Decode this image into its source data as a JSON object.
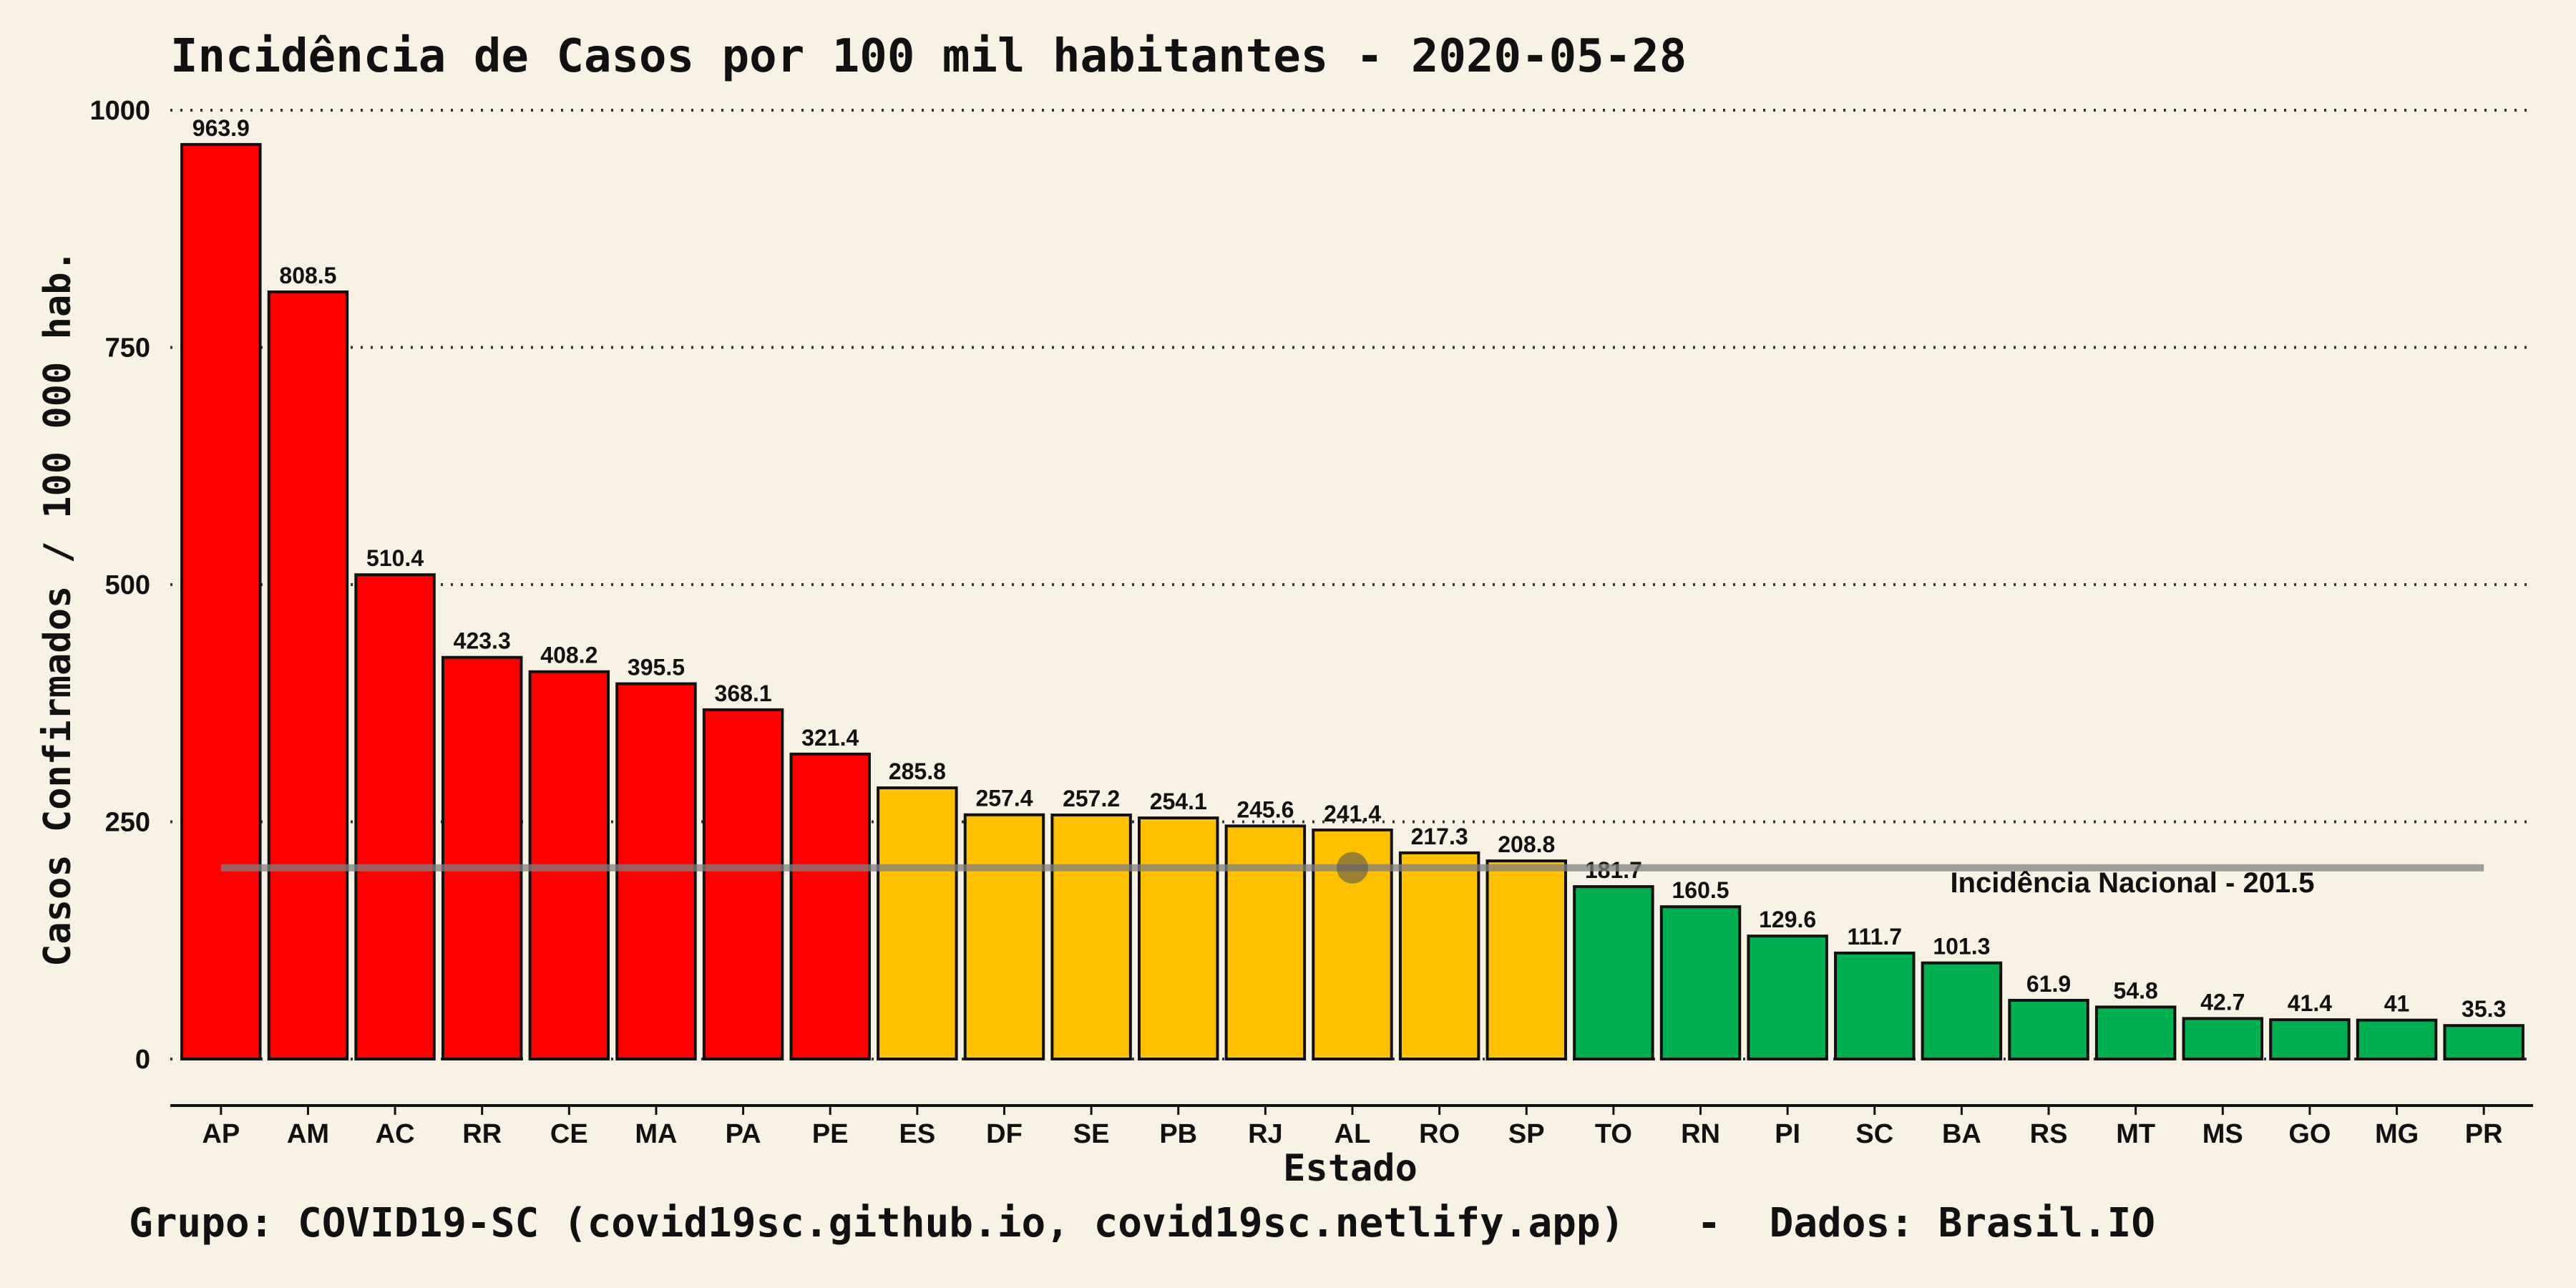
{
  "chart_data": {
    "type": "bar",
    "title": "Incidência de Casos por 100 mil habitantes -  2020-05-28",
    "xlabel": "Estado",
    "ylabel": "Casos Confirmados / 100 000 hab.",
    "caption": "Grupo: COVID19-SC (covid19sc.github.io, covid19sc.netlify.app)   -  Dados: Brasil.IO",
    "ylim": [
      0,
      1000
    ],
    "yticks": [
      0,
      250,
      500,
      750,
      1000
    ],
    "grid": "horizontal dotted",
    "categories": [
      "AP",
      "AM",
      "AC",
      "RR",
      "CE",
      "MA",
      "PA",
      "PE",
      "ES",
      "DF",
      "SE",
      "PB",
      "RJ",
      "AL",
      "RO",
      "SP",
      "TO",
      "RN",
      "PI",
      "SC",
      "BA",
      "RS",
      "MT",
      "MS",
      "GO",
      "MG",
      "PR"
    ],
    "values": [
      963.9,
      808.5,
      510.4,
      423.3,
      408.2,
      395.5,
      368.1,
      321.4,
      285.8,
      257.4,
      257.2,
      254.1,
      245.6,
      241.4,
      217.3,
      208.8,
      181.7,
      160.5,
      129.6,
      111.7,
      101.3,
      61.9,
      54.8,
      42.7,
      41.4,
      41,
      35.3
    ],
    "value_labels": [
      "963.9",
      "808.5",
      "510.4",
      "423.3",
      "408.2",
      "395.5",
      "368.1",
      "321.4",
      "285.8",
      "257.4",
      "257.2",
      "254.1",
      "245.6",
      "241.4",
      "217.3",
      "208.8",
      "181.7",
      "160.5",
      "129.6",
      "111.7",
      "101.3",
      "61.9",
      "54.8",
      "42.7",
      "41.4",
      "41",
      "35.3"
    ],
    "colors": [
      "#ff0000",
      "#ff0000",
      "#ff0000",
      "#ff0000",
      "#ff0000",
      "#ff0000",
      "#ff0000",
      "#ff0000",
      "#ffc000",
      "#ffc000",
      "#ffc000",
      "#ffc000",
      "#ffc000",
      "#ffc000",
      "#ffc000",
      "#ffc000",
      "#00b050",
      "#00b050",
      "#00b050",
      "#00b050",
      "#00b050",
      "#00b050",
      "#00b050",
      "#00b050",
      "#00b050",
      "#00b050",
      "#00b050"
    ],
    "reference_line": {
      "value": 201.5,
      "label": "Incidência Nacional -  201.5",
      "color": "#808080"
    }
  }
}
